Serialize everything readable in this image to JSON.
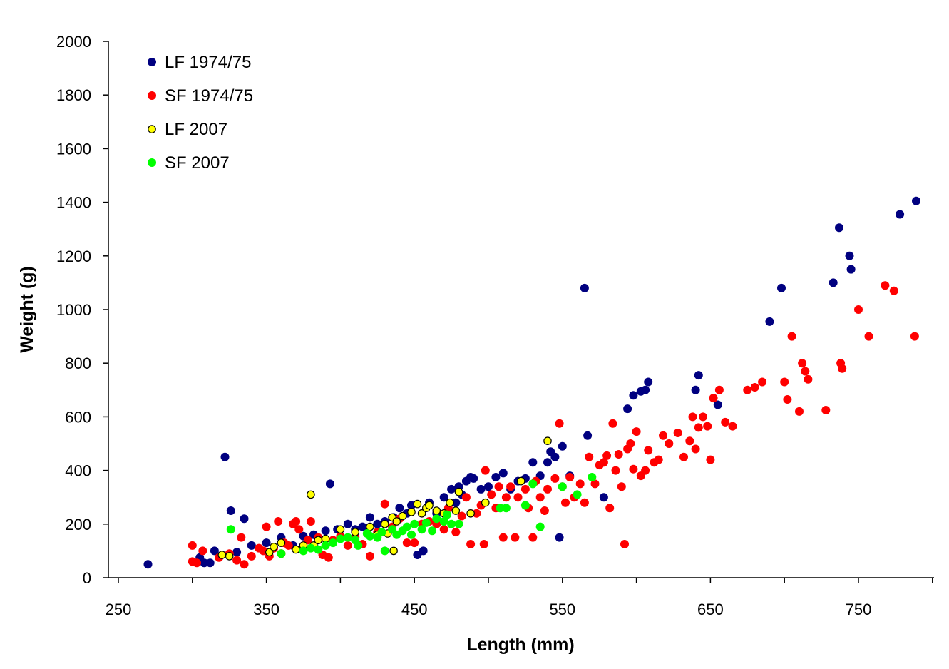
{
  "chart_data": {
    "type": "scatter",
    "title": "",
    "xlabel": "Length (mm)",
    "ylabel": "Weight (g)",
    "xlim": [
      250,
      800
    ],
    "ylim": [
      0,
      2000
    ],
    "xticks": [
      250,
      350,
      450,
      550,
      650,
      750
    ],
    "yticks": [
      0,
      200,
      400,
      600,
      800,
      1000,
      1200,
      1400,
      1600,
      1800,
      2000
    ],
    "grid": false,
    "legend_position": "top-left",
    "series": [
      {
        "name": "LF 1974/75",
        "color": "#000080",
        "marker": "filled-circle",
        "points": [
          [
            270,
            50
          ],
          [
            305,
            75
          ],
          [
            308,
            55
          ],
          [
            312,
            55
          ],
          [
            315,
            100
          ],
          [
            322,
            450
          ],
          [
            326,
            250
          ],
          [
            330,
            95
          ],
          [
            335,
            220
          ],
          [
            340,
            120
          ],
          [
            350,
            130
          ],
          [
            360,
            150
          ],
          [
            368,
            120
          ],
          [
            375,
            155
          ],
          [
            382,
            160
          ],
          [
            390,
            175
          ],
          [
            393,
            350
          ],
          [
            398,
            180
          ],
          [
            405,
            200
          ],
          [
            410,
            180
          ],
          [
            415,
            190
          ],
          [
            420,
            225
          ],
          [
            425,
            200
          ],
          [
            430,
            210
          ],
          [
            436,
            225
          ],
          [
            440,
            260
          ],
          [
            445,
            240
          ],
          [
            448,
            270
          ],
          [
            452,
            85
          ],
          [
            456,
            100
          ],
          [
            460,
            280
          ],
          [
            465,
            240
          ],
          [
            470,
            300
          ],
          [
            475,
            330
          ],
          [
            478,
            280
          ],
          [
            480,
            340
          ],
          [
            482,
            310
          ],
          [
            485,
            360
          ],
          [
            488,
            375
          ],
          [
            490,
            370
          ],
          [
            495,
            330
          ],
          [
            500,
            340
          ],
          [
            505,
            375
          ],
          [
            510,
            390
          ],
          [
            515,
            330
          ],
          [
            520,
            360
          ],
          [
            525,
            370
          ],
          [
            530,
            430
          ],
          [
            535,
            380
          ],
          [
            540,
            430
          ],
          [
            542,
            470
          ],
          [
            545,
            450
          ],
          [
            548,
            150
          ],
          [
            550,
            490
          ],
          [
            555,
            380
          ],
          [
            565,
            1080
          ],
          [
            567,
            530
          ],
          [
            578,
            300
          ],
          [
            594,
            630
          ],
          [
            598,
            680
          ],
          [
            603,
            695
          ],
          [
            606,
            700
          ],
          [
            608,
            730
          ],
          [
            640,
            700
          ],
          [
            642,
            755
          ],
          [
            655,
            645
          ],
          [
            690,
            955
          ],
          [
            698,
            1080
          ],
          [
            733,
            1100
          ],
          [
            737,
            1305
          ],
          [
            744,
            1200
          ],
          [
            745,
            1150
          ],
          [
            778,
            1355
          ],
          [
            789,
            1405
          ]
        ]
      },
      {
        "name": "SF 1974/75",
        "color": "#ff0000",
        "marker": "filled-circle",
        "points": [
          [
            300,
            120
          ],
          [
            300,
            60
          ],
          [
            303,
            55
          ],
          [
            307,
            100
          ],
          [
            318,
            75
          ],
          [
            325,
            90
          ],
          [
            330,
            65
          ],
          [
            333,
            150
          ],
          [
            335,
            50
          ],
          [
            340,
            80
          ],
          [
            345,
            110
          ],
          [
            348,
            100
          ],
          [
            350,
            190
          ],
          [
            352,
            80
          ],
          [
            355,
            110
          ],
          [
            358,
            210
          ],
          [
            360,
            90
          ],
          [
            362,
            130
          ],
          [
            365,
            120
          ],
          [
            368,
            200
          ],
          [
            370,
            210
          ],
          [
            372,
            180
          ],
          [
            375,
            110
          ],
          [
            378,
            140
          ],
          [
            380,
            210
          ],
          [
            385,
            150
          ],
          [
            388,
            85
          ],
          [
            392,
            75
          ],
          [
            395,
            140
          ],
          [
            400,
            155
          ],
          [
            405,
            120
          ],
          [
            410,
            150
          ],
          [
            415,
            125
          ],
          [
            420,
            80
          ],
          [
            425,
            170
          ],
          [
            430,
            275
          ],
          [
            435,
            190
          ],
          [
            440,
            220
          ],
          [
            445,
            130
          ],
          [
            450,
            130
          ],
          [
            455,
            200
          ],
          [
            460,
            210
          ],
          [
            465,
            200
          ],
          [
            470,
            180
          ],
          [
            473,
            260
          ],
          [
            478,
            170
          ],
          [
            482,
            230
          ],
          [
            485,
            300
          ],
          [
            488,
            125
          ],
          [
            492,
            240
          ],
          [
            495,
            270
          ],
          [
            497,
            125
          ],
          [
            498,
            400
          ],
          [
            502,
            310
          ],
          [
            505,
            260
          ],
          [
            507,
            340
          ],
          [
            510,
            150
          ],
          [
            512,
            300
          ],
          [
            515,
            340
          ],
          [
            518,
            150
          ],
          [
            520,
            300
          ],
          [
            525,
            330
          ],
          [
            527,
            260
          ],
          [
            530,
            150
          ],
          [
            532,
            360
          ],
          [
            535,
            300
          ],
          [
            538,
            250
          ],
          [
            540,
            330
          ],
          [
            545,
            370
          ],
          [
            548,
            575
          ],
          [
            550,
            340
          ],
          [
            552,
            280
          ],
          [
            555,
            375
          ],
          [
            558,
            300
          ],
          [
            562,
            350
          ],
          [
            565,
            280
          ],
          [
            568,
            450
          ],
          [
            572,
            350
          ],
          [
            575,
            420
          ],
          [
            578,
            430
          ],
          [
            580,
            455
          ],
          [
            582,
            260
          ],
          [
            584,
            575
          ],
          [
            586,
            400
          ],
          [
            588,
            460
          ],
          [
            590,
            340
          ],
          [
            592,
            125
          ],
          [
            594,
            480
          ],
          [
            596,
            500
          ],
          [
            598,
            405
          ],
          [
            600,
            545
          ],
          [
            603,
            380
          ],
          [
            606,
            400
          ],
          [
            608,
            475
          ],
          [
            612,
            430
          ],
          [
            615,
            440
          ],
          [
            618,
            530
          ],
          [
            622,
            500
          ],
          [
            628,
            540
          ],
          [
            632,
            450
          ],
          [
            636,
            510
          ],
          [
            638,
            600
          ],
          [
            640,
            480
          ],
          [
            642,
            560
          ],
          [
            645,
            600
          ],
          [
            648,
            565
          ],
          [
            650,
            440
          ],
          [
            652,
            670
          ],
          [
            656,
            700
          ],
          [
            660,
            580
          ],
          [
            665,
            565
          ],
          [
            675,
            700
          ],
          [
            680,
            710
          ],
          [
            685,
            730
          ],
          [
            700,
            730
          ],
          [
            702,
            665
          ],
          [
            705,
            900
          ],
          [
            710,
            620
          ],
          [
            712,
            800
          ],
          [
            714,
            770
          ],
          [
            716,
            740
          ],
          [
            728,
            625
          ],
          [
            738,
            800
          ],
          [
            739,
            780
          ],
          [
            750,
            1000
          ],
          [
            757,
            900
          ],
          [
            768,
            1090
          ],
          [
            774,
            1070
          ],
          [
            788,
            900
          ]
        ]
      },
      {
        "name": "LF 2007",
        "color": "#ffff00",
        "marker": "outlined-circle",
        "points": [
          [
            320,
            85
          ],
          [
            325,
            80
          ],
          [
            352,
            95
          ],
          [
            355,
            115
          ],
          [
            360,
            130
          ],
          [
            370,
            105
          ],
          [
            375,
            120
          ],
          [
            380,
            310
          ],
          [
            382,
            120
          ],
          [
            385,
            140
          ],
          [
            390,
            145
          ],
          [
            395,
            130
          ],
          [
            400,
            180
          ],
          [
            405,
            150
          ],
          [
            410,
            170
          ],
          [
            420,
            190
          ],
          [
            425,
            160
          ],
          [
            430,
            200
          ],
          [
            432,
            165
          ],
          [
            435,
            225
          ],
          [
            436,
            100
          ],
          [
            438,
            210
          ],
          [
            442,
            230
          ],
          [
            448,
            245
          ],
          [
            452,
            275
          ],
          [
            455,
            240
          ],
          [
            458,
            260
          ],
          [
            460,
            270
          ],
          [
            465,
            250
          ],
          [
            470,
            240
          ],
          [
            474,
            280
          ],
          [
            478,
            250
          ],
          [
            480,
            320
          ],
          [
            488,
            240
          ],
          [
            498,
            280
          ],
          [
            522,
            360
          ],
          [
            540,
            510
          ]
        ]
      },
      {
        "name": "SF 2007",
        "color": "#00ff00",
        "marker": "filled-circle",
        "points": [
          [
            326,
            180
          ],
          [
            360,
            90
          ],
          [
            375,
            100
          ],
          [
            380,
            110
          ],
          [
            385,
            105
          ],
          [
            390,
            120
          ],
          [
            395,
            130
          ],
          [
            400,
            145
          ],
          [
            405,
            150
          ],
          [
            410,
            140
          ],
          [
            412,
            120
          ],
          [
            418,
            165
          ],
          [
            420,
            155
          ],
          [
            425,
            150
          ],
          [
            428,
            170
          ],
          [
            430,
            100
          ],
          [
            435,
            180
          ],
          [
            438,
            160
          ],
          [
            442,
            175
          ],
          [
            445,
            190
          ],
          [
            448,
            160
          ],
          [
            450,
            200
          ],
          [
            455,
            180
          ],
          [
            458,
            205
          ],
          [
            462,
            175
          ],
          [
            465,
            220
          ],
          [
            470,
            210
          ],
          [
            472,
            235
          ],
          [
            475,
            200
          ],
          [
            480,
            200
          ],
          [
            508,
            260
          ],
          [
            512,
            260
          ],
          [
            525,
            270
          ],
          [
            530,
            350
          ],
          [
            535,
            190
          ],
          [
            550,
            340
          ],
          [
            560,
            310
          ],
          [
            570,
            375
          ]
        ]
      }
    ]
  }
}
